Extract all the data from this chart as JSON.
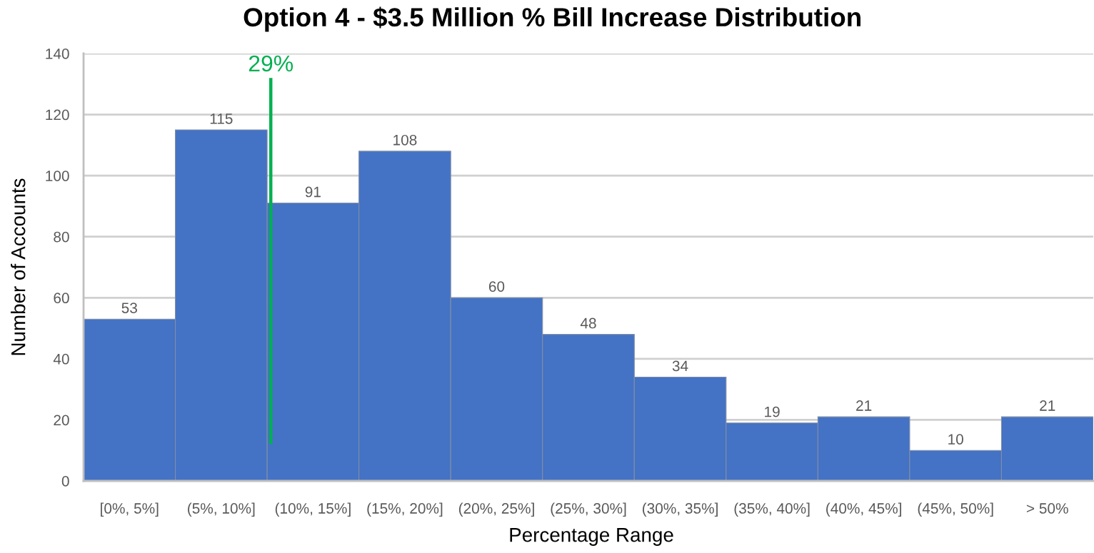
{
  "chart_data": {
    "type": "bar",
    "title": "Option 4 - $3.5 Million % Bill Increase Distribution",
    "xlabel": "Percentage Range",
    "ylabel": "Number of Accounts",
    "categories": [
      "[0%, 5%]",
      "(5%, 10%]",
      "(10%, 15%]",
      "(15%, 20%]",
      "(20%, 25%]",
      "(25%, 30%]",
      "(30%, 35%]",
      "(35%, 40%]",
      "(40%, 45%]",
      "(45%, 50%]",
      "> 50%"
    ],
    "values": [
      53,
      115,
      91,
      108,
      60,
      48,
      34,
      19,
      21,
      10,
      21
    ],
    "color": "#4472c4",
    "ylim": [
      0,
      140
    ],
    "yticks": [
      0,
      20,
      40,
      60,
      80,
      100,
      120,
      140
    ],
    "grid": "y",
    "data_labels": true,
    "ref_lines": [
      {
        "axis": "x",
        "value": "(5%, 10%]",
        "label": "29%",
        "color": "#00b050"
      }
    ]
  }
}
